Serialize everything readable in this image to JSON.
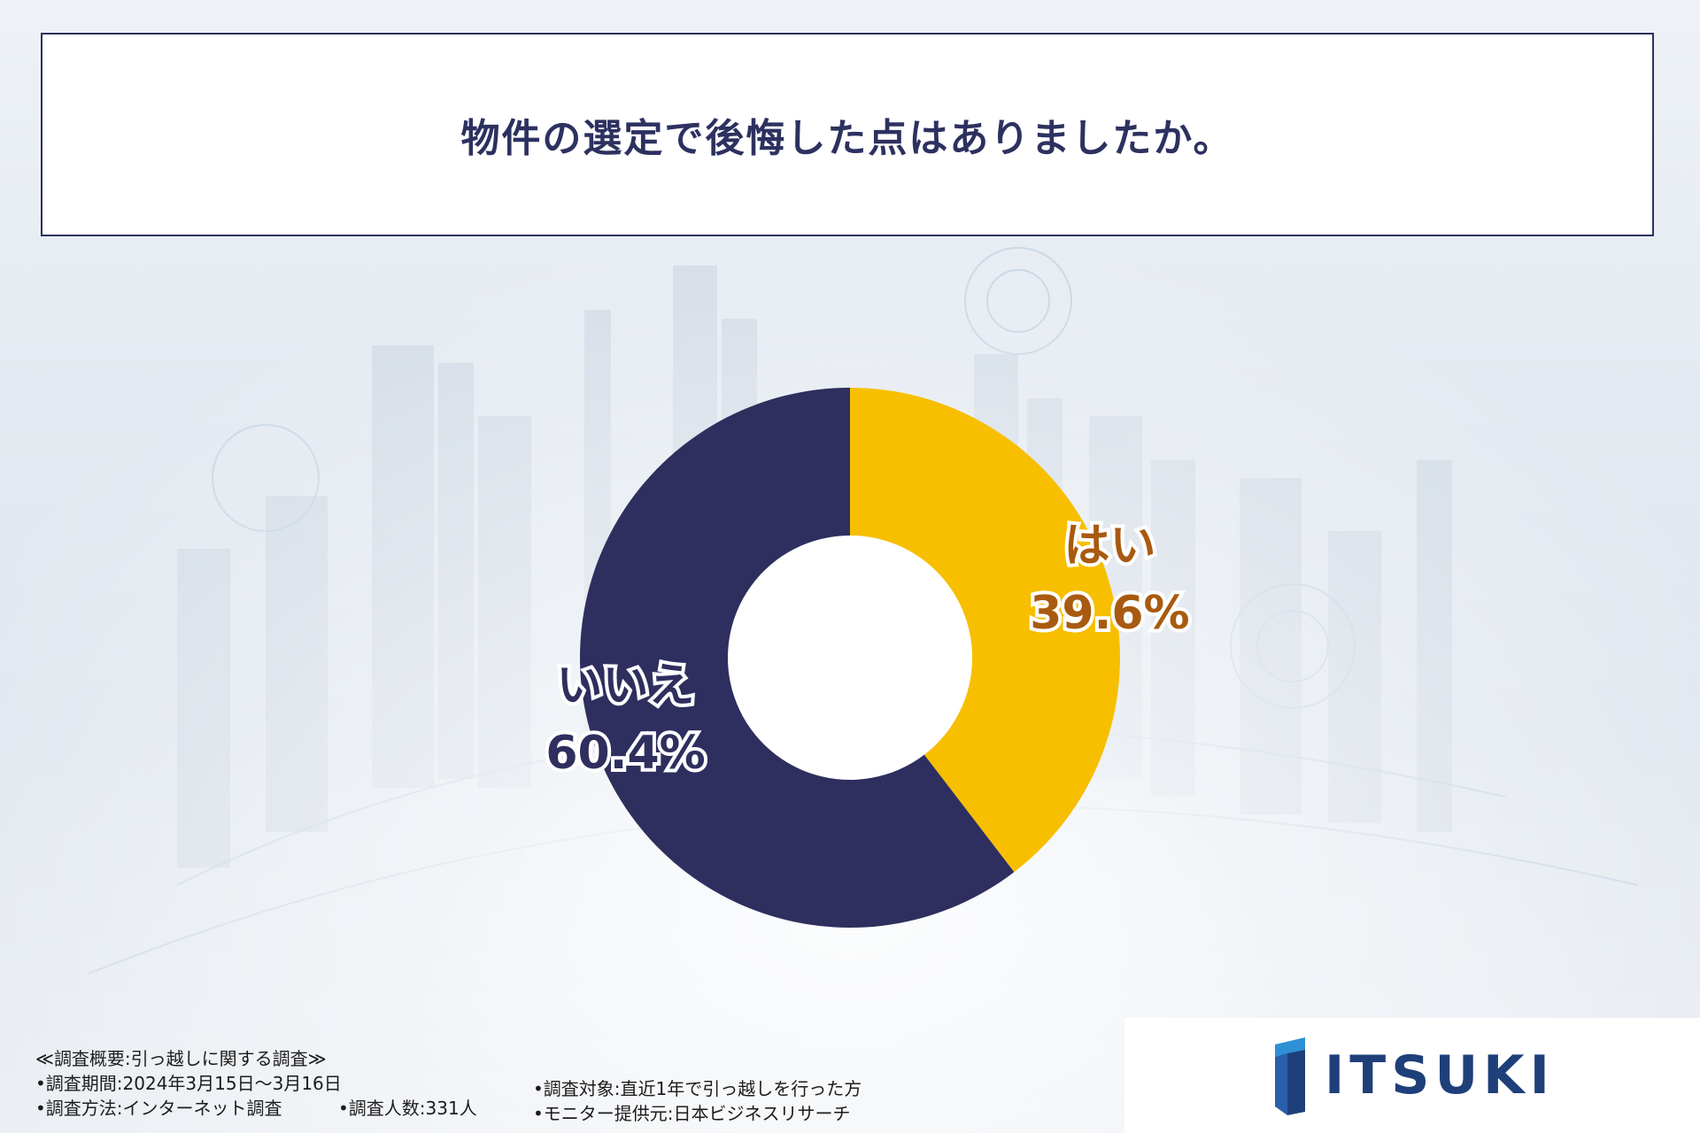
{
  "title": "物件の選定で後悔した点はありましたか。",
  "chart_data": {
    "type": "pie",
    "style": "donut",
    "slices": [
      {
        "label": "はい",
        "value": 39.6,
        "display": "39.6%",
        "color": "#f7bf00",
        "label_color": "#a85a10"
      },
      {
        "label": "いいえ",
        "value": 60.4,
        "display": "60.4%",
        "color": "#2e2f5e",
        "label_color": "#2e2f5e"
      }
    ]
  },
  "notes": {
    "heading": "≪調査概要:引っ越しに関する調査≫",
    "period": "•調査期間:2024年3月15日～3月16日",
    "method": "•調査方法:インターネット調査",
    "count": "•調査人数:331人",
    "target": "•調査対象:直近1年で引っ越しを行った方",
    "provider": "•モニター提供元:日本ビジネスリサーチ"
  },
  "logo": {
    "text": "ITSUKI",
    "color": "#1f3f7a"
  }
}
